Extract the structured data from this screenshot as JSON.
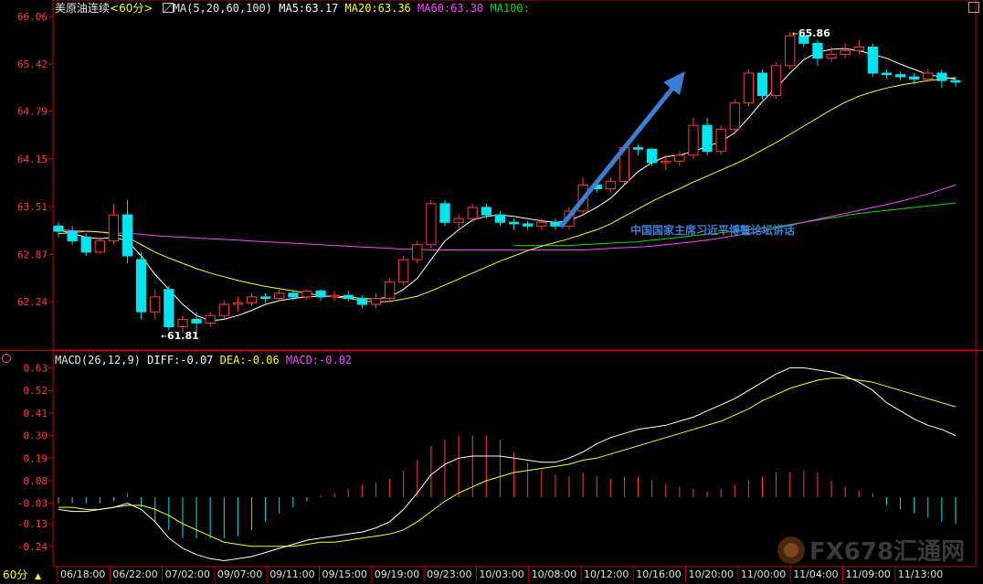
{
  "header": {
    "symbol": "美原油连续",
    "period": "<60分>",
    "ma_label": "MA(5,20,60,100)",
    "ma5": "MA5:63.17",
    "ma20": "MA20:63.36",
    "ma60": "MA60:63.30",
    "ma100": "MA100:"
  },
  "macd_header": {
    "label": "MACD(26,12,9)",
    "diff": "DIFF:-0.07",
    "dea": "DEA:-0.06",
    "macd": "MACD:-0.02"
  },
  "period_button": "60分",
  "annotation": "中国国家主席习近平博鳌论坛讲话",
  "watermark": "FX678汇通网",
  "colors": {
    "bull": "#ff3b3b",
    "bear": "#00e5ee",
    "ma5": "#ffffff",
    "ma20": "#ffff00",
    "ma60": "#ff44ff",
    "ma100": "#00dd00",
    "arrow": "#3a7fd5",
    "axis": "#cc0000",
    "annotation": "#3a7fd5"
  },
  "chart_data": [
    {
      "type": "candlestick",
      "y_ticks": [
        "66.06",
        "65.42",
        "64.79",
        "64.15",
        "63.51",
        "62.87",
        "62.24"
      ],
      "ylim": [
        61.6,
        66.06
      ],
      "x_ticks": [
        "06/18:00",
        "06/22:00",
        "07/02:00",
        "09/07:00",
        "09/11:00",
        "09/15:00",
        "09/19:00",
        "09/23:00",
        "10/03:00",
        "10/08:00",
        "10/12:00",
        "10/16:00",
        "10/20:00",
        "11/00:00",
        "11/04:00",
        "11/09:00",
        "11/13:00"
      ],
      "low_label": "61.81",
      "high_label": "65.86",
      "candles": [
        [
          63.25,
          63.18,
          63.3,
          63.1
        ],
        [
          63.18,
          63.05,
          63.25,
          63.0
        ],
        [
          63.1,
          62.9,
          63.15,
          62.85
        ],
        [
          62.9,
          63.05,
          63.1,
          62.88
        ],
        [
          63.05,
          63.4,
          63.55,
          63.0
        ],
        [
          63.4,
          62.85,
          63.6,
          62.75
        ],
        [
          62.8,
          62.1,
          62.9,
          62.0
        ],
        [
          62.1,
          62.3,
          62.4,
          62.0
        ],
        [
          62.4,
          61.9,
          62.45,
          61.85
        ],
        [
          61.9,
          62.0,
          62.05,
          61.82
        ],
        [
          62.0,
          61.95,
          62.1,
          61.81
        ],
        [
          61.95,
          62.05,
          62.1,
          61.9
        ],
        [
          62.05,
          62.2,
          62.25,
          62.0
        ],
        [
          62.2,
          62.22,
          62.3,
          62.1
        ],
        [
          62.22,
          62.3,
          62.35,
          62.18
        ],
        [
          62.3,
          62.28,
          62.35,
          62.22
        ],
        [
          62.28,
          62.35,
          62.4,
          62.25
        ],
        [
          62.35,
          62.3,
          62.38,
          62.25
        ],
        [
          62.3,
          62.38,
          62.4,
          62.26
        ],
        [
          62.38,
          62.3,
          62.4,
          62.25
        ],
        [
          62.3,
          62.32,
          62.38,
          62.25
        ],
        [
          62.32,
          62.28,
          62.38,
          62.24
        ],
        [
          62.28,
          62.2,
          62.32,
          62.15
        ],
        [
          62.2,
          62.28,
          62.35,
          62.15
        ],
        [
          62.28,
          62.5,
          62.55,
          62.25
        ],
        [
          62.5,
          62.8,
          62.85,
          62.45
        ],
        [
          62.8,
          63.0,
          63.05,
          62.75
        ],
        [
          63.0,
          63.55,
          63.6,
          62.95
        ],
        [
          63.55,
          63.3,
          63.6,
          63.25
        ],
        [
          63.3,
          63.35,
          63.4,
          63.22
        ],
        [
          63.35,
          63.5,
          63.55,
          63.3
        ],
        [
          63.5,
          63.4,
          63.55,
          63.35
        ],
        [
          63.4,
          63.3,
          63.45,
          63.25
        ],
        [
          63.3,
          63.28,
          63.35,
          63.2
        ],
        [
          63.28,
          63.25,
          63.32,
          63.2
        ],
        [
          63.25,
          63.3,
          63.35,
          63.2
        ],
        [
          63.3,
          63.25,
          63.35,
          63.2
        ],
        [
          63.25,
          63.45,
          63.5,
          63.2
        ],
        [
          63.45,
          63.8,
          63.9,
          63.4
        ],
        [
          63.8,
          63.75,
          63.85,
          63.7
        ],
        [
          63.75,
          63.85,
          63.9,
          63.7
        ],
        [
          63.85,
          64.3,
          64.35,
          63.8
        ],
        [
          64.3,
          64.28,
          64.35,
          64.2
        ],
        [
          64.28,
          64.1,
          64.3,
          64.05
        ],
        [
          64.1,
          64.12,
          64.2,
          64.0
        ],
        [
          64.12,
          64.2,
          64.25,
          64.05
        ],
        [
          64.2,
          64.6,
          64.7,
          64.15
        ],
        [
          64.6,
          64.25,
          64.7,
          64.2
        ],
        [
          64.25,
          64.55,
          64.6,
          64.2
        ],
        [
          64.55,
          64.9,
          64.95,
          64.5
        ],
        [
          64.9,
          65.3,
          65.35,
          64.85
        ],
        [
          65.3,
          65.0,
          65.35,
          64.95
        ],
        [
          65.0,
          65.4,
          65.45,
          64.95
        ],
        [
          65.4,
          65.8,
          65.85,
          65.35
        ],
        [
          65.8,
          65.7,
          65.86,
          65.65
        ],
        [
          65.7,
          65.5,
          65.75,
          65.4
        ],
        [
          65.5,
          65.55,
          65.65,
          65.45
        ],
        [
          65.55,
          65.6,
          65.7,
          65.5
        ],
        [
          65.6,
          65.65,
          65.75,
          65.55
        ],
        [
          65.65,
          65.3,
          65.7,
          65.25
        ],
        [
          65.3,
          65.28,
          65.35,
          65.22
        ],
        [
          65.28,
          65.25,
          65.32,
          65.2
        ],
        [
          65.25,
          65.22,
          65.3,
          65.15
        ],
        [
          65.22,
          65.3,
          65.35,
          65.18
        ],
        [
          65.3,
          65.2,
          65.35,
          65.1
        ],
        [
          65.2,
          65.18,
          65.25,
          65.12
        ]
      ],
      "ma5": [
        63.2,
        63.15,
        63.1,
        63.08,
        63.1,
        63.05,
        62.85,
        62.6,
        62.4,
        62.2,
        62.05,
        61.98,
        62.0,
        62.05,
        62.12,
        62.2,
        62.25,
        62.28,
        62.3,
        62.31,
        62.31,
        62.3,
        62.28,
        62.27,
        62.3,
        62.4,
        62.55,
        62.8,
        63.05,
        63.2,
        63.33,
        63.38,
        63.4,
        63.38,
        63.35,
        63.32,
        63.3,
        63.32,
        63.4,
        63.5,
        63.62,
        63.8,
        63.98,
        64.1,
        64.18,
        64.2,
        64.25,
        64.32,
        64.38,
        64.5,
        64.7,
        64.92,
        65.1,
        65.3,
        65.48,
        65.58,
        65.62,
        65.63,
        65.6,
        65.55,
        65.5,
        65.42,
        65.35,
        65.28,
        65.25,
        65.22
      ],
      "ma20": [
        63.15,
        63.16,
        63.18,
        63.17,
        63.15,
        63.1,
        63.0,
        62.9,
        62.82,
        62.75,
        62.68,
        62.62,
        62.57,
        62.52,
        62.48,
        62.44,
        62.41,
        62.38,
        62.35,
        62.32,
        62.3,
        62.28,
        62.25,
        62.23,
        62.24,
        62.27,
        62.31,
        62.38,
        62.46,
        62.54,
        62.62,
        62.7,
        62.78,
        62.85,
        62.92,
        62.98,
        63.03,
        63.08,
        63.14,
        63.2,
        63.28,
        63.38,
        63.48,
        63.58,
        63.67,
        63.75,
        63.84,
        63.92,
        64.0,
        64.08,
        64.17,
        64.27,
        64.37,
        64.48,
        64.59,
        64.7,
        64.81,
        64.91,
        64.99,
        65.05,
        65.1,
        65.14,
        65.17,
        65.2,
        65.22,
        65.24
      ],
      "ma60": [
        63.2,
        63.19,
        63.18,
        63.17,
        63.16,
        63.15,
        63.14,
        63.12,
        63.11,
        63.1,
        63.09,
        63.08,
        63.07,
        63.06,
        63.05,
        63.04,
        63.03,
        63.02,
        63.01,
        63.0,
        62.99,
        62.98,
        62.97,
        62.96,
        62.95,
        62.94,
        62.94,
        62.93,
        62.93,
        62.93,
        62.93,
        62.93,
        62.93,
        62.93,
        62.93,
        62.93,
        62.93,
        62.93,
        62.93,
        62.94,
        62.95,
        62.96,
        62.97,
        62.98,
        63.0,
        63.02,
        63.04,
        63.06,
        63.09,
        63.12,
        63.15,
        63.18,
        63.22,
        63.26,
        63.3,
        63.34,
        63.38,
        63.42,
        63.46,
        63.5,
        63.54,
        63.58,
        63.63,
        63.68,
        63.74,
        63.8
      ],
      "ma100": [
        null,
        null,
        null,
        null,
        null,
        null,
        null,
        null,
        null,
        null,
        null,
        null,
        null,
        null,
        null,
        null,
        null,
        null,
        null,
        null,
        null,
        null,
        null,
        null,
        null,
        null,
        null,
        null,
        null,
        null,
        null,
        null,
        null,
        62.99,
        62.99,
        62.99,
        62.99,
        62.99,
        63.0,
        63.01,
        63.02,
        63.03,
        63.04,
        63.06,
        63.08,
        63.1,
        63.12,
        63.14,
        63.16,
        63.18,
        63.2,
        63.22,
        63.24,
        63.27,
        63.3,
        63.33,
        63.36,
        63.39,
        63.42,
        63.44,
        63.46,
        63.48,
        63.5,
        63.52,
        63.54,
        63.56
      ]
    },
    {
      "type": "macd",
      "y_ticks": [
        "0.63",
        "0.52",
        "0.41",
        "0.30",
        "0.19",
        "0.08",
        "-0.03",
        "-0.13",
        "-0.24"
      ],
      "ylim": [
        -0.33,
        0.65
      ],
      "hist": [
        -0.03,
        -0.03,
        -0.03,
        -0.03,
        -0.02,
        0.02,
        -0.05,
        -0.12,
        -0.16,
        -0.2,
        -0.2,
        -0.2,
        -0.2,
        -0.19,
        -0.16,
        -0.12,
        -0.08,
        -0.05,
        -0.02,
        0.01,
        0.02,
        0.04,
        0.06,
        0.07,
        0.09,
        0.13,
        0.18,
        0.25,
        0.28,
        0.3,
        0.3,
        0.3,
        0.28,
        0.22,
        0.17,
        0.13,
        0.11,
        0.1,
        0.12,
        0.1,
        0.09,
        0.1,
        0.1,
        0.08,
        0.06,
        0.05,
        0.04,
        0.03,
        0.04,
        0.06,
        0.08,
        0.1,
        0.12,
        0.12,
        0.13,
        0.12,
        0.08,
        0.05,
        0.03,
        0.02,
        -0.04,
        -0.06,
        -0.08,
        -0.1,
        -0.12,
        -0.13
      ],
      "diff": [
        -0.06,
        -0.07,
        -0.07,
        -0.06,
        -0.05,
        -0.03,
        -0.06,
        -0.12,
        -0.2,
        -0.25,
        -0.28,
        -0.3,
        -0.31,
        -0.3,
        -0.29,
        -0.27,
        -0.25,
        -0.23,
        -0.21,
        -0.2,
        -0.19,
        -0.18,
        -0.17,
        -0.15,
        -0.12,
        -0.06,
        0.02,
        0.11,
        0.16,
        0.19,
        0.2,
        0.2,
        0.2,
        0.19,
        0.18,
        0.17,
        0.17,
        0.19,
        0.22,
        0.26,
        0.29,
        0.31,
        0.33,
        0.34,
        0.35,
        0.37,
        0.39,
        0.42,
        0.45,
        0.48,
        0.52,
        0.56,
        0.6,
        0.63,
        0.63,
        0.62,
        0.61,
        0.59,
        0.56,
        0.52,
        0.46,
        0.42,
        0.38,
        0.35,
        0.33,
        0.3
      ],
      "dea": [
        -0.05,
        -0.05,
        -0.06,
        -0.06,
        -0.05,
        -0.04,
        -0.04,
        -0.06,
        -0.09,
        -0.13,
        -0.16,
        -0.19,
        -0.22,
        -0.23,
        -0.24,
        -0.24,
        -0.24,
        -0.24,
        -0.23,
        -0.22,
        -0.22,
        -0.21,
        -0.2,
        -0.19,
        -0.18,
        -0.16,
        -0.12,
        -0.07,
        -0.02,
        0.02,
        0.05,
        0.08,
        0.1,
        0.12,
        0.13,
        0.14,
        0.15,
        0.16,
        0.18,
        0.19,
        0.21,
        0.23,
        0.25,
        0.27,
        0.29,
        0.31,
        0.33,
        0.35,
        0.37,
        0.4,
        0.43,
        0.47,
        0.5,
        0.53,
        0.55,
        0.57,
        0.58,
        0.58,
        0.57,
        0.56,
        0.54,
        0.52,
        0.5,
        0.48,
        0.46,
        0.44
      ]
    }
  ]
}
